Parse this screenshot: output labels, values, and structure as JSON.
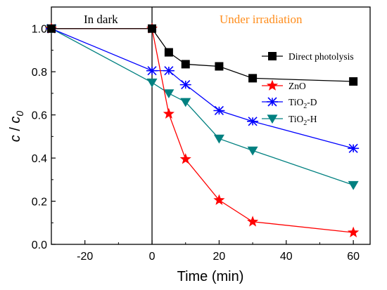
{
  "chart_data": {
    "type": "line",
    "xlabel": "Time (min)",
    "ylabel_main": "c",
    "ylabel_sep": " / ",
    "ylabel_sym": "c",
    "ylabel_sub": "0",
    "xlim": [
      -30,
      65
    ],
    "ylim": [
      0.0,
      1.1
    ],
    "x_ticks": [
      -20,
      0,
      20,
      40,
      60
    ],
    "y_ticks": [
      0.0,
      0.2,
      0.4,
      0.6,
      0.8,
      1.0
    ],
    "x_tick_labels": [
      "-20",
      "0",
      "20",
      "40",
      "60"
    ],
    "y_tick_labels": [
      "0.0",
      "0.2",
      "0.4",
      "0.6",
      "0.8",
      "1.0"
    ],
    "divider_x": 0,
    "annotations": {
      "dark": {
        "text": "In dark",
        "color": "#000000"
      },
      "irradiation": {
        "text": "Under irradiation",
        "color": "#ff8c1a"
      }
    },
    "legend_position": "right",
    "series": [
      {
        "key": "direct",
        "legend_main": "Direct photolysis",
        "color": "#000000",
        "marker": "square",
        "x": [
          -30,
          0,
          5,
          10,
          20,
          30,
          60
        ],
        "y": [
          1.0,
          1.0,
          0.89,
          0.835,
          0.825,
          0.77,
          0.755
        ]
      },
      {
        "key": "zno",
        "legend_main": "ZnO",
        "color": "#ff0000",
        "marker": "star",
        "x": [
          -30,
          0,
          5,
          10,
          20,
          30,
          60
        ],
        "y": [
          1.0,
          1.0,
          0.605,
          0.395,
          0.205,
          0.105,
          0.055
        ]
      },
      {
        "key": "tio2d",
        "legend_main": "TiO",
        "legend_sub": "2",
        "legend_tail": "-D",
        "color": "#0000ff",
        "marker": "asterisk",
        "x": [
          -30,
          0,
          5,
          10,
          20,
          30,
          60
        ],
        "y": [
          1.0,
          0.805,
          0.805,
          0.74,
          0.62,
          0.57,
          0.445
        ]
      },
      {
        "key": "tio2h",
        "legend_main": "TiO",
        "legend_sub": "2",
        "legend_tail": "-H",
        "color": "#008080",
        "marker": "triangle-down",
        "x": [
          -30,
          0,
          5,
          10,
          20,
          30,
          60
        ],
        "y": [
          1.0,
          0.75,
          0.7,
          0.66,
          0.49,
          0.435,
          0.275
        ]
      }
    ]
  }
}
